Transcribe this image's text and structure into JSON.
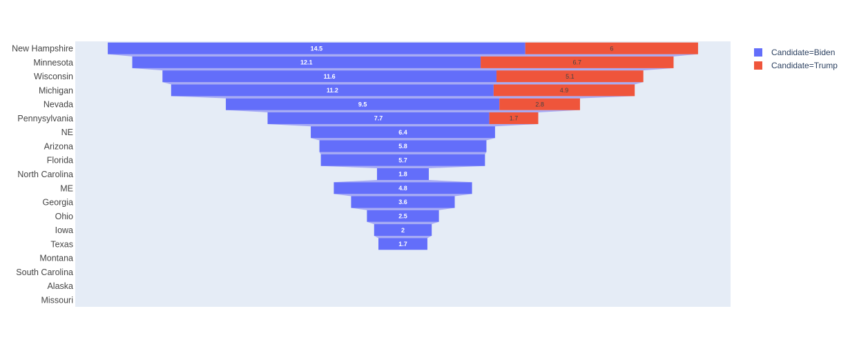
{
  "chart_data": {
    "type": "funnel",
    "title": "",
    "xlabel": "",
    "ylabel": "",
    "categories": [
      "New Hampshire",
      "Minnesota",
      "Wisconsin",
      "Michigan",
      "Nevada",
      "Pennysylvania",
      "NE",
      "Arizona",
      "Florida",
      "North Carolina",
      "ME",
      "Georgia",
      "Ohio",
      "Iowa",
      "Texas",
      "Montana",
      "South Carolina",
      "Alaska",
      "Missouri"
    ],
    "series": [
      {
        "name": "Candidate=Biden",
        "color": "#636efa",
        "values": [
          14.5,
          12.1,
          11.6,
          11.2,
          9.5,
          7.7,
          6.4,
          5.8,
          5.7,
          1.8,
          4.8,
          3.6,
          2.5,
          2,
          1.7,
          null,
          null,
          null,
          null
        ]
      },
      {
        "name": "Candidate=Trump",
        "color": "#ef553b",
        "values": [
          6,
          6.7,
          5.1,
          4.9,
          2.8,
          1.7,
          null,
          null,
          null,
          null,
          null,
          null,
          null,
          null,
          null,
          null,
          null,
          null,
          null
        ]
      }
    ],
    "connector_color": "#a7abf4",
    "plot_background": "#e5ecf6",
    "legend_position": "top-right"
  }
}
